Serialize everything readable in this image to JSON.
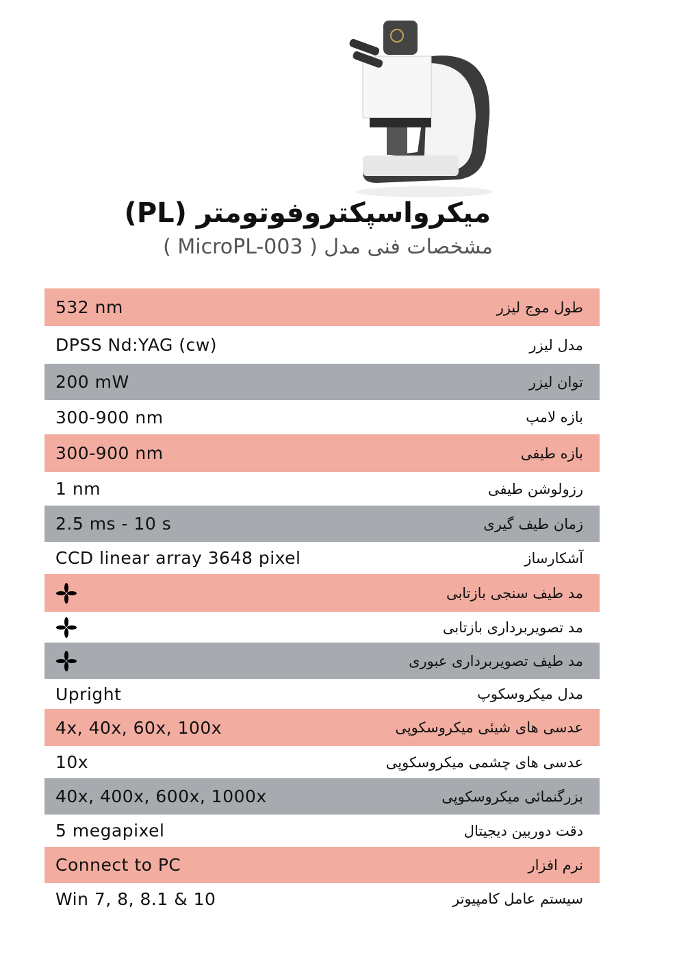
{
  "header": {
    "title": "میکرواسپکتروفوتومتر (PL)",
    "subtitle": "مشخصات فنی  مدل ( MicroPL-003 )"
  },
  "colors": {
    "salmon": "#f2ada0",
    "grey": "#a7abb0",
    "white": "#ffffff"
  },
  "specs": [
    {
      "label": "طول موج لیزر",
      "value": "532 nm",
      "style": "salmon"
    },
    {
      "label": "مدل لیزر",
      "value": "DPSS Nd:YAG (cw)",
      "style": "white"
    },
    {
      "label": "توان لیزر",
      "value": "200 mW",
      "style": "grey"
    },
    {
      "label": "بازه لامپ",
      "value": "300-900 nm",
      "style": "white"
    },
    {
      "label": "بازه طیفی",
      "value": "300-900 nm",
      "style": "salmon"
    },
    {
      "label": "رزولوشن طیفی",
      "value": "1 nm",
      "style": "white"
    },
    {
      "label": "زمان طیف گیری",
      "value": "2.5 ms - 10 s",
      "style": "grey"
    },
    {
      "label": "آشکارساز",
      "value": "CCD linear array 3648 pixel",
      "style": "white"
    },
    {
      "label": "مد  طیف سنجی بازتابی",
      "value": "",
      "icon": "four-point-star-icon",
      "style": "salmon"
    },
    {
      "label": "مد  تصویربرداری بازتابی",
      "value": "",
      "icon": "four-point-star-icon",
      "style": "white"
    },
    {
      "label": "مد  طیف تصویربرداری عبوری",
      "value": "",
      "icon": "four-point-star-icon",
      "style": "grey"
    },
    {
      "label": "مدل میکروسکوپ",
      "value": "Upright",
      "style": "white"
    },
    {
      "label": "عدسی های شیئی میکروسکوپی",
      "value": "4x, 40x, 60x, 100x",
      "style": "salmon"
    },
    {
      "label": "عدسی های چشمی میکروسکوپی",
      "value": "10x",
      "style": "white"
    },
    {
      "label": "بزرگنمائی میکروسکوپی",
      "value": "40x, 400x, 600x, 1000x",
      "style": "grey"
    },
    {
      "label": "دقت دوربین دیجیتال",
      "value": "5 megapixel",
      "style": "white"
    },
    {
      "label": "نرم افزار",
      "value": "Connect to PC",
      "style": "salmon"
    },
    {
      "label": "سیستم عامل کامپیوتر",
      "value": "Win 7, 8, 8.1 & 10",
      "style": "white"
    }
  ]
}
